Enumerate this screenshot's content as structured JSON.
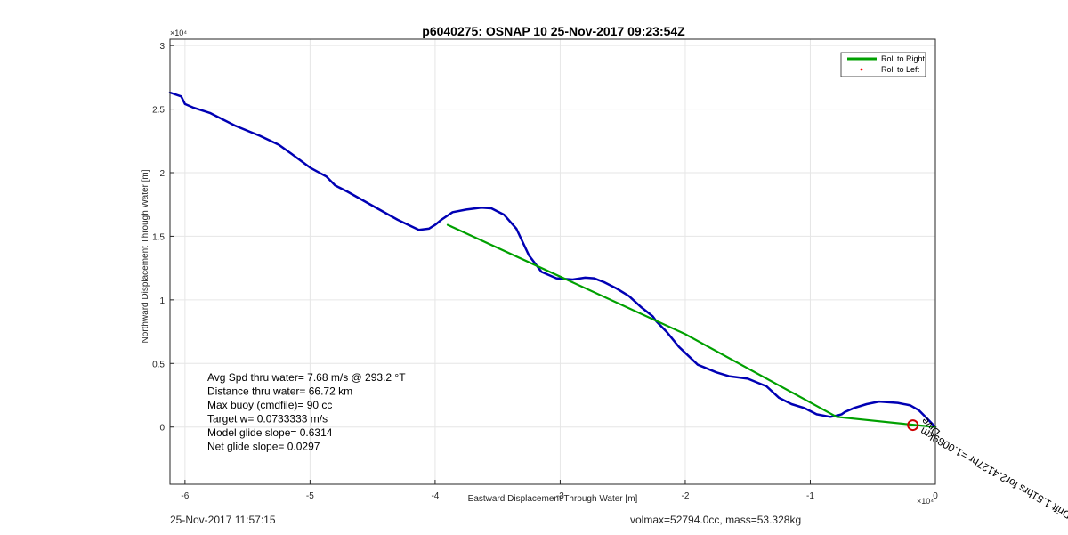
{
  "chart_data": {
    "type": "line",
    "title": "p6040275: OSNAP 10 25-Nov-2017 09:23:54Z",
    "xlabel": "Eastward Displacement Through Water [m]",
    "ylabel": "Northward Displacement Through Water [m]",
    "x_exponent_label": "×10⁴",
    "y_exponent_label": "×10⁴",
    "xlim": [
      -61200,
      0
    ],
    "ylim": [
      -4500,
      30500
    ],
    "x_ticks": [
      -60000,
      -50000,
      -40000,
      -30000,
      -20000,
      -10000,
      0
    ],
    "x_tick_labels": [
      "-6",
      "-5",
      "-4",
      "-3",
      "-2",
      "-1",
      "0"
    ],
    "y_ticks": [
      0,
      5000,
      10000,
      15000,
      20000,
      25000,
      30000
    ],
    "y_tick_labels": [
      "0",
      "0.5",
      "1",
      "1.5",
      "2",
      "2.5",
      "3"
    ],
    "grid": true,
    "legend_position": "top-right",
    "legend": [
      {
        "label": "Roll to Right",
        "color": "#00a000",
        "style": "line"
      },
      {
        "label": "Roll to Left",
        "color": "#ff0000",
        "style": "dot"
      }
    ],
    "series": [
      {
        "role": "track",
        "color": "#0000b4",
        "x": [
          -61200,
          -60300,
          -60000,
          -59300,
          -58000,
          -57000,
          -56000,
          -55000,
          -54000,
          -52500,
          -51500,
          -50000,
          -48700,
          -48000,
          -47000,
          -45000,
          -43000,
          -41300,
          -40500,
          -40000,
          -39500,
          -38600,
          -37500,
          -36300,
          -35500,
          -34500,
          -33500,
          -32500,
          -31500,
          -30300,
          -29000,
          -28000,
          -27300,
          -26500,
          -25500,
          -24500,
          -23500,
          -22600,
          -22300,
          -21500,
          -20500,
          -19000,
          -17500,
          -16500,
          -15000,
          -13500,
          -12500,
          -11500,
          -10500,
          -9500,
          -8400,
          -7900,
          -7500,
          -7200,
          -6500,
          -5500,
          -4500,
          -3000,
          -2000,
          -1300,
          -800,
          -400,
          0
        ],
        "y": [
          26300,
          26000,
          25400,
          25100,
          24700,
          24200,
          23700,
          23300,
          22900,
          22200,
          21500,
          20400,
          19700,
          19000,
          18500,
          17400,
          16300,
          15500,
          15600,
          15900,
          16300,
          16900,
          17100,
          17250,
          17200,
          16700,
          15600,
          13500,
          12200,
          11700,
          11600,
          11750,
          11700,
          11400,
          10900,
          10300,
          9400,
          8700,
          8300,
          7500,
          6300,
          4900,
          4300,
          4000,
          3800,
          3200,
          2300,
          1800,
          1500,
          1000,
          800,
          900,
          1000,
          1200,
          1500,
          1800,
          2000,
          1900,
          1700,
          1300,
          800,
          400,
          0
        ]
      },
      {
        "name": "Roll to Right",
        "color": "#00a000",
        "x": [
          -39000,
          -20000,
          -7900,
          -2000,
          0
        ],
        "y": [
          15900,
          7300,
          800,
          200,
          0
        ]
      }
    ],
    "annotations": [
      {
        "text": "Avg Spd thru water=  7.68 m/s @ 293.2 °T"
      },
      {
        "text": "Distance thru water= 66.72 km"
      },
      {
        "text": "Max buoy (cmdfile)= 90 cc"
      },
      {
        "text": "Target w= 0.0733333 m/s"
      },
      {
        "text": "Model glide slope= 0.6314"
      },
      {
        "text": "Net glide slope= 0.0297"
      }
    ],
    "rotated_annotations": [
      {
        "text": "Drift 1.51hrs for2.4127hr =1.0089km",
        "x": -1000,
        "y": 0
      },
      {
        "text": "Dive"
      }
    ],
    "markers": [
      {
        "type": "circle",
        "color": "#cc0000",
        "x": -1800,
        "y": 150
      }
    ]
  },
  "footer": {
    "timestamp": "25-Nov-2017 11:57:15",
    "summary": "volmax=52794.0cc, mass=53.328kg"
  }
}
